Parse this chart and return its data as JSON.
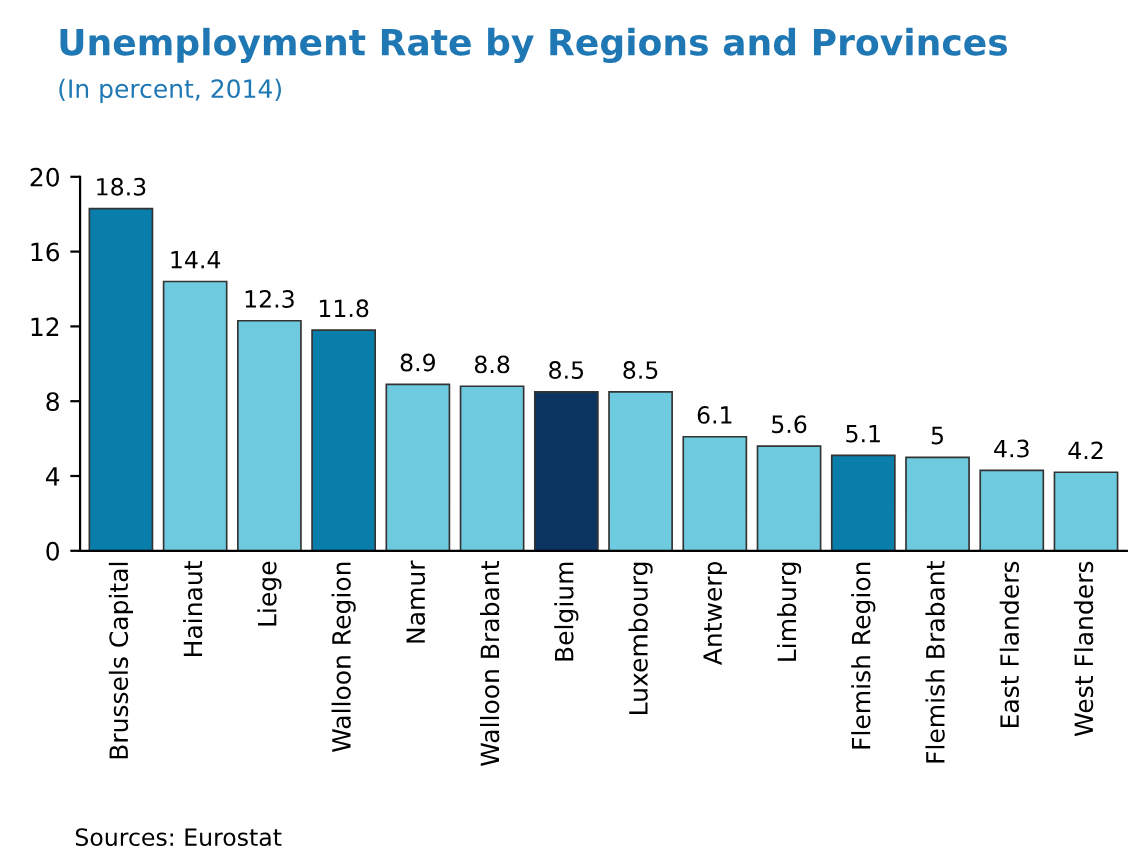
{
  "chart_data": {
    "type": "bar",
    "title": "Unemployment Rate by Regions and Provinces",
    "subtitle": "(In percent, 2014)",
    "categories": [
      "Brussels Capital",
      "Hainaut",
      "Liege",
      "Walloon Region",
      "Namur",
      "Walloon Brabant",
      "Belgium",
      "Luxembourg",
      "Antwerp",
      "Limburg",
      "Flemish Region",
      "Flemish Brabant",
      "East Flanders",
      "West Flanders"
    ],
    "values": [
      18.3,
      14.4,
      12.3,
      11.8,
      8.9,
      8.8,
      8.5,
      8.5,
      6.1,
      5.6,
      5.1,
      5,
      4.3,
      4.2
    ],
    "colors": [
      "#0a7eab",
      "#6ecbdf",
      "#6ecbdf",
      "#0a7eab",
      "#6ecbdf",
      "#6ecbdf",
      "#0b3560",
      "#6ecbdf",
      "#6ecbdf",
      "#6ecbdf",
      "#0a7eab",
      "#6ecbdf",
      "#6ecbdf",
      "#6ecbdf"
    ],
    "ylim": [
      0,
      20
    ],
    "yticks": [
      0,
      4,
      8,
      12,
      16,
      20
    ],
    "grid": false,
    "data_labels": true,
    "annotations": [
      "Sources: Eurostat"
    ]
  }
}
